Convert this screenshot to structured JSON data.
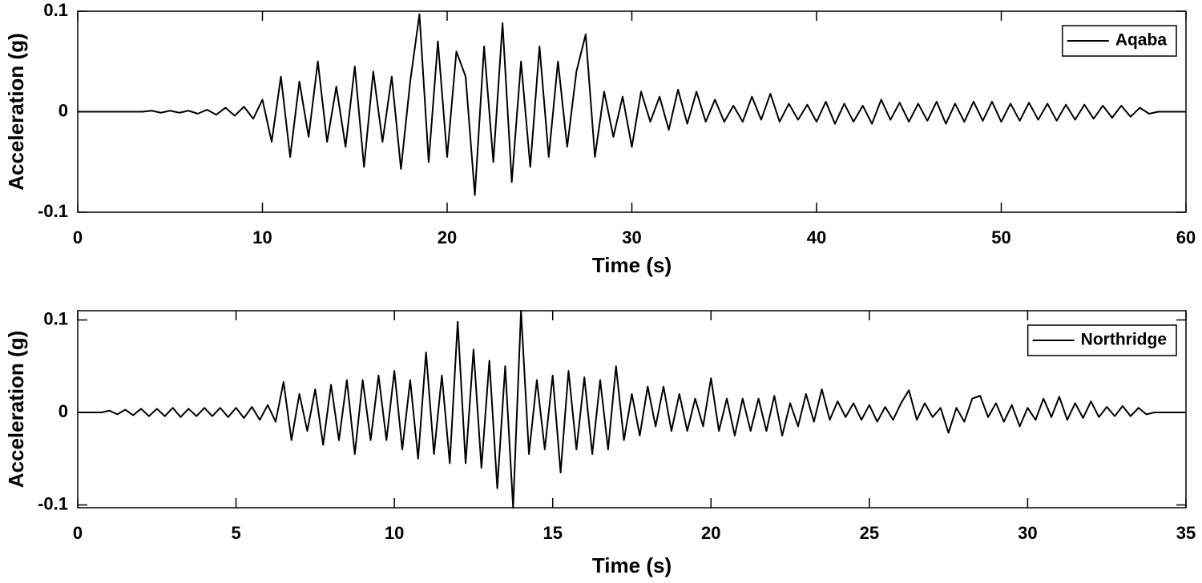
{
  "chart_data": [
    {
      "type": "line",
      "xlabel": "Time (s)",
      "ylabel": "Acceleration (g)",
      "legend": "upper right",
      "xlim": [
        0,
        60
      ],
      "ylim": [
        -0.1,
        0.1
      ],
      "xticks": [
        0,
        10,
        20,
        30,
        40,
        50,
        60
      ],
      "yticks": [
        -0.1,
        0,
        0.1
      ],
      "x": [
        0,
        0.5,
        1,
        1.5,
        2,
        2.5,
        3,
        3.5,
        4,
        4.5,
        5,
        5.5,
        6,
        6.5,
        7,
        7.5,
        8,
        8.5,
        9,
        9.5,
        10,
        10.5,
        11,
        11.5,
        12,
        12.5,
        13,
        13.5,
        14,
        14.5,
        15,
        15.5,
        16,
        16.5,
        17,
        17.5,
        18,
        18.5,
        19,
        19.5,
        20,
        20.5,
        21,
        21.5,
        22,
        22.5,
        23,
        23.5,
        24,
        24.5,
        25,
        25.5,
        26,
        26.5,
        27,
        27.5,
        28,
        28.5,
        29,
        29.5,
        30,
        30.5,
        31,
        31.5,
        32,
        32.5,
        33,
        33.5,
        34,
        34.5,
        35,
        35.5,
        36,
        36.5,
        37,
        37.5,
        38,
        38.5,
        39,
        39.5,
        40,
        40.5,
        41,
        41.5,
        42,
        42.5,
        43,
        43.5,
        44,
        44.5,
        45,
        45.5,
        46,
        46.5,
        47,
        47.5,
        48,
        48.5,
        49,
        49.5,
        50,
        50.5,
        51,
        51.5,
        52,
        52.5,
        53,
        53.5,
        54,
        54.5,
        55,
        55.5,
        56,
        56.5,
        57,
        57.5,
        58,
        58.5,
        59,
        59.5,
        60
      ],
      "series": [
        {
          "name": "Aqaba",
          "color": "#000000",
          "values": [
            0,
            0,
            0,
            0,
            0,
            0,
            0,
            0,
            0.001,
            -0.001,
            0.001,
            -0.001,
            0.001,
            -0.002,
            0.002,
            -0.003,
            0.004,
            -0.004,
            0.005,
            -0.007,
            0.012,
            -0.03,
            0.035,
            -0.045,
            0.03,
            -0.025,
            0.05,
            -0.03,
            0.025,
            -0.035,
            0.045,
            -0.055,
            0.04,
            -0.03,
            0.035,
            -0.057,
            0.03,
            0.097,
            -0.05,
            0.07,
            -0.045,
            0.06,
            0.035,
            -0.083,
            0.065,
            -0.05,
            0.088,
            -0.07,
            0.05,
            -0.055,
            0.065,
            -0.045,
            0.05,
            -0.035,
            0.04,
            0.077,
            -0.045,
            0.02,
            -0.025,
            0.015,
            -0.035,
            0.02,
            -0.01,
            0.015,
            -0.018,
            0.022,
            -0.012,
            0.02,
            -0.01,
            0.012,
            -0.01,
            0.006,
            -0.01,
            0.015,
            -0.008,
            0.018,
            -0.01,
            0.008,
            -0.008,
            0.007,
            -0.01,
            0.01,
            -0.012,
            0.008,
            -0.01,
            0.006,
            -0.012,
            0.012,
            -0.008,
            0.009,
            -0.01,
            0.008,
            -0.009,
            0.01,
            -0.012,
            0.008,
            -0.01,
            0.01,
            -0.009,
            0.01,
            -0.01,
            0.008,
            -0.009,
            0.009,
            -0.008,
            0.008,
            -0.009,
            0.007,
            -0.008,
            0.007,
            -0.007,
            0.006,
            -0.006,
            0.006,
            -0.005,
            0.004,
            -0.002,
            0,
            0,
            0,
            0
          ]
        }
      ]
    },
    {
      "type": "line",
      "xlabel": "Time (s)",
      "ylabel": "Acceleration (g)",
      "legend": "upper right",
      "xlim": [
        0,
        35
      ],
      "ylim": [
        -0.103,
        0.11
      ],
      "xticks": [
        0,
        5,
        10,
        15,
        20,
        25,
        30,
        35
      ],
      "yticks": [
        -0.1,
        0,
        0.1
      ],
      "x": [
        0,
        0.25,
        0.5,
        0.75,
        1,
        1.25,
        1.5,
        1.75,
        2,
        2.25,
        2.5,
        2.75,
        3,
        3.25,
        3.5,
        3.75,
        4,
        4.25,
        4.5,
        4.75,
        5,
        5.25,
        5.5,
        5.75,
        6,
        6.25,
        6.5,
        6.75,
        7,
        7.25,
        7.5,
        7.75,
        8,
        8.25,
        8.5,
        8.75,
        9,
        9.25,
        9.5,
        9.75,
        10,
        10.25,
        10.5,
        10.75,
        11,
        11.25,
        11.5,
        11.75,
        12,
        12.25,
        12.5,
        12.75,
        13,
        13.25,
        13.5,
        13.75,
        14,
        14.25,
        14.5,
        14.75,
        15,
        15.25,
        15.5,
        15.75,
        16,
        16.25,
        16.5,
        16.75,
        17,
        17.25,
        17.5,
        17.75,
        18,
        18.25,
        18.5,
        18.75,
        19,
        19.25,
        19.5,
        19.75,
        20,
        20.25,
        20.5,
        20.75,
        21,
        21.25,
        21.5,
        21.75,
        22,
        22.25,
        22.5,
        22.75,
        23,
        23.25,
        23.5,
        23.75,
        24,
        24.25,
        24.5,
        24.75,
        25,
        25.25,
        25.5,
        25.75,
        26,
        26.25,
        26.5,
        26.75,
        27,
        27.25,
        27.5,
        27.75,
        28,
        28.25,
        28.5,
        28.75,
        29,
        29.25,
        29.5,
        29.75,
        30,
        30.25,
        30.5,
        30.75,
        31,
        31.25,
        31.5,
        31.75,
        32,
        32.25,
        32.5,
        32.75,
        33,
        33.25,
        33.5,
        33.75,
        34,
        34.25,
        34.5,
        34.75,
        35
      ],
      "series": [
        {
          "name": "Northridge",
          "color": "#000000",
          "values": [
            0,
            0,
            0,
            0,
            0.002,
            -0.002,
            0.003,
            -0.003,
            0.004,
            -0.004,
            0.004,
            -0.004,
            0.005,
            -0.005,
            0.004,
            -0.004,
            0.005,
            -0.004,
            0.005,
            -0.005,
            0.005,
            -0.006,
            0.006,
            -0.008,
            0.008,
            -0.01,
            0.033,
            -0.03,
            0.02,
            -0.02,
            0.025,
            -0.035,
            0.03,
            -0.03,
            0.035,
            -0.045,
            0.035,
            -0.03,
            0.04,
            -0.03,
            0.045,
            -0.04,
            0.035,
            -0.05,
            0.065,
            -0.045,
            0.04,
            -0.055,
            0.098,
            -0.055,
            0.068,
            -0.06,
            0.056,
            -0.082,
            0.05,
            -0.103,
            0.11,
            -0.045,
            0.035,
            -0.04,
            0.04,
            -0.065,
            0.045,
            -0.04,
            0.038,
            -0.045,
            0.035,
            -0.04,
            0.05,
            -0.03,
            0.02,
            -0.025,
            0.028,
            -0.015,
            0.028,
            -0.02,
            0.02,
            -0.02,
            0.015,
            -0.015,
            0.037,
            -0.02,
            0.015,
            -0.025,
            0.015,
            -0.02,
            0.015,
            -0.02,
            0.018,
            -0.025,
            0.01,
            -0.015,
            0.02,
            -0.01,
            0.025,
            -0.008,
            0.012,
            -0.005,
            0.01,
            -0.008,
            0.008,
            -0.01,
            0.006,
            -0.008,
            0.01,
            0.024,
            -0.008,
            0.01,
            -0.005,
            0.005,
            -0.022,
            0.005,
            -0.01,
            0.015,
            0.018,
            -0.005,
            0.01,
            -0.01,
            0.008,
            -0.015,
            0.005,
            -0.008,
            0.015,
            -0.005,
            0.017,
            -0.008,
            0.01,
            -0.006,
            0.012,
            -0.005,
            0.006,
            -0.004,
            0.007,
            -0.004,
            0.005,
            -0.002,
            0,
            0,
            0,
            0,
            0
          ]
        }
      ]
    }
  ]
}
